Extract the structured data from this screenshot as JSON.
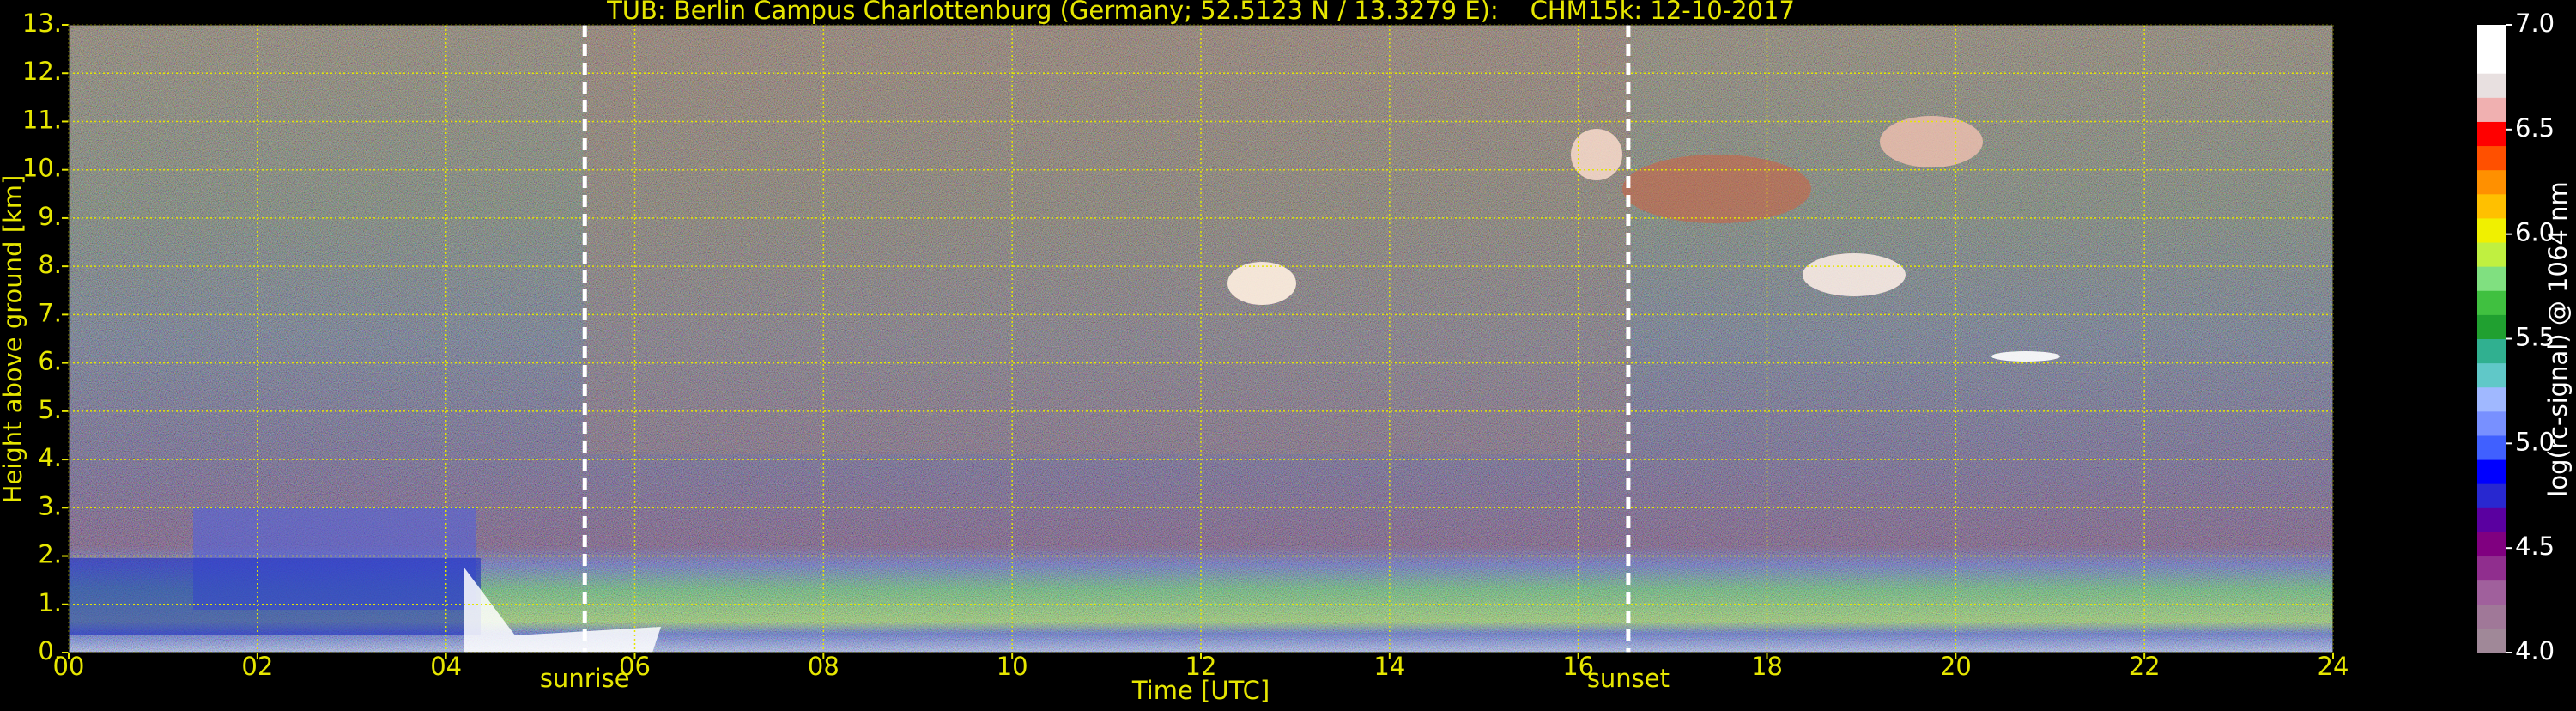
{
  "chart_data": {
    "type": "heatmap",
    "title": "TUB: Berlin Campus Charlottenburg (Germany; 52.5123 N / 13.3279 E):    CHM15k: 12-10-2017",
    "x_label": "Time [UTC]",
    "y_label": "Height above ground [km]",
    "xlim": [
      0,
      24
    ],
    "ylim": [
      0,
      13
    ],
    "xticks": [
      {
        "value": 0,
        "label": "00"
      },
      {
        "value": 2,
        "label": "02"
      },
      {
        "value": 4,
        "label": "04"
      },
      {
        "value": 6,
        "label": "06"
      },
      {
        "value": 8,
        "label": "08"
      },
      {
        "value": 10,
        "label": "10"
      },
      {
        "value": 12,
        "label": "12"
      },
      {
        "value": 14,
        "label": "14"
      },
      {
        "value": 16,
        "label": "16"
      },
      {
        "value": 18,
        "label": "18"
      },
      {
        "value": 20,
        "label": "20"
      },
      {
        "value": 22,
        "label": "22"
      },
      {
        "value": 24,
        "label": "24"
      }
    ],
    "yticks": [
      {
        "value": 0,
        "label": "0."
      },
      {
        "value": 1,
        "label": "1."
      },
      {
        "value": 2,
        "label": "2."
      },
      {
        "value": 3,
        "label": "3."
      },
      {
        "value": 4,
        "label": "4."
      },
      {
        "value": 5,
        "label": "5."
      },
      {
        "value": 6,
        "label": "6."
      },
      {
        "value": 7,
        "label": "7."
      },
      {
        "value": 8,
        "label": "8."
      },
      {
        "value": 9,
        "label": "9."
      },
      {
        "value": 10,
        "label": "10."
      },
      {
        "value": 11,
        "label": "11."
      },
      {
        "value": 12,
        "label": "12."
      },
      {
        "value": 13,
        "label": "13."
      }
    ],
    "grid": true,
    "grid_color": "#e6e600",
    "annotations": [
      {
        "text": "sunrise",
        "x": 5.47
      },
      {
        "text": "sunset",
        "x": 16.53
      }
    ],
    "colorbar": {
      "label": "log(rc-signal) @ 1064 nm",
      "lim": [
        4,
        7
      ],
      "ticks": [
        {
          "value": 4,
          "label": "4.0"
        },
        {
          "value": 4.5,
          "label": "4.5"
        },
        {
          "value": 5,
          "label": "5.0"
        },
        {
          "value": 5.5,
          "label": "5.5"
        },
        {
          "value": 6,
          "label": "6.0"
        },
        {
          "value": 6.5,
          "label": "6.5"
        },
        {
          "value": 7,
          "label": "7.0"
        }
      ],
      "colors": [
        "#a08898",
        "#a07898",
        "#a0609c",
        "#902e8e",
        "#800080",
        "#5a00a0",
        "#2828d0",
        "#0000ff",
        "#4060ff",
        "#7890ff",
        "#a0b8ff",
        "#60c8c8",
        "#30b090",
        "#20a030",
        "#40c040",
        "#80e080",
        "#c0f040",
        "#f0f000",
        "#ffc000",
        "#ff9000",
        "#ff5000",
        "#ff0000",
        "#f0b0b0",
        "#e8e0e0",
        "#ffffff",
        "#ffffff"
      ]
    }
  }
}
